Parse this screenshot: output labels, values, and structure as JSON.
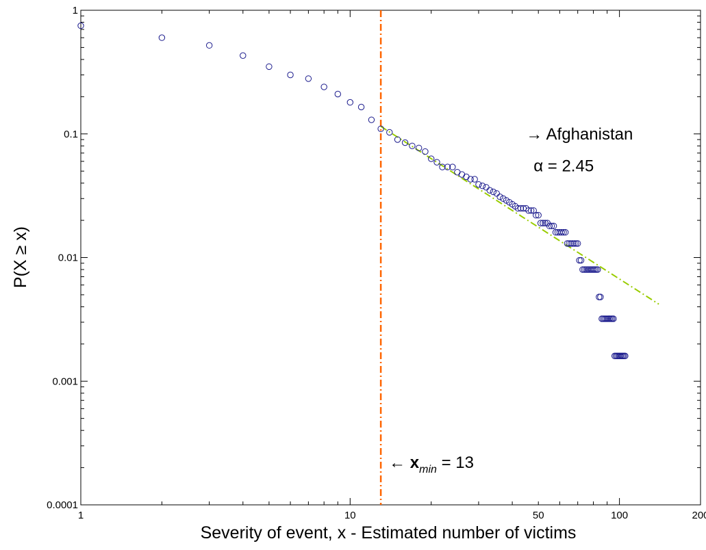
{
  "chart_data": {
    "type": "scatter",
    "title": "",
    "xlabel": "Severity of event, x - Estimated number of victims",
    "ylabel": "P(X ≥ x)",
    "x_scale": "log",
    "y_scale": "log",
    "xlim": [
      1,
      200
    ],
    "ylim": [
      0.0001,
      1
    ],
    "x_ticks": [
      1,
      10,
      50,
      100,
      200
    ],
    "x_tick_labels": [
      "1",
      "10",
      "50",
      "100",
      "200"
    ],
    "y_ticks": [
      0.0001,
      0.001,
      0.01,
      0.1,
      1
    ],
    "y_tick_labels": [
      "0.0001",
      "0.001",
      "0.01",
      "0.1",
      "1"
    ],
    "grid": false,
    "colors": {
      "points": "#1a1a8c",
      "fit": "#99cc00",
      "xmin_line": "#ff6600"
    },
    "series": [
      {
        "points": [
          [
            1,
            0.75
          ],
          [
            2,
            0.6
          ],
          [
            3,
            0.52
          ],
          [
            4,
            0.43
          ],
          [
            5,
            0.35
          ],
          [
            6,
            0.3
          ],
          [
            7,
            0.28
          ],
          [
            8,
            0.24
          ],
          [
            9,
            0.21
          ],
          [
            10,
            0.18
          ],
          [
            11,
            0.165
          ],
          [
            12,
            0.13
          ],
          [
            13,
            0.11
          ],
          [
            14,
            0.103
          ],
          [
            15,
            0.09
          ],
          [
            16,
            0.085
          ],
          [
            17,
            0.08
          ],
          [
            18,
            0.077
          ],
          [
            19,
            0.072
          ],
          [
            20,
            0.063
          ],
          [
            21,
            0.059
          ],
          [
            22,
            0.054
          ],
          [
            23,
            0.054
          ],
          [
            24,
            0.054
          ],
          [
            25,
            0.049
          ],
          [
            26,
            0.047
          ],
          [
            27,
            0.045
          ],
          [
            28,
            0.043
          ],
          [
            29,
            0.043
          ],
          [
            30,
            0.039
          ],
          [
            31,
            0.038
          ],
          [
            32,
            0.037
          ],
          [
            33,
            0.035
          ],
          [
            34,
            0.034
          ],
          [
            35,
            0.033
          ],
          [
            36,
            0.031
          ],
          [
            37,
            0.03
          ],
          [
            38,
            0.029
          ],
          [
            39,
            0.028
          ],
          [
            40,
            0.027
          ],
          [
            41,
            0.026
          ],
          [
            42,
            0.025
          ],
          [
            43,
            0.025
          ],
          [
            44,
            0.025
          ],
          [
            45,
            0.025
          ],
          [
            46,
            0.024
          ],
          [
            47,
            0.024
          ],
          [
            48,
            0.024
          ],
          [
            49,
            0.022
          ],
          [
            50,
            0.022
          ],
          [
            51,
            0.019
          ],
          [
            52,
            0.019
          ],
          [
            53,
            0.019
          ],
          [
            54,
            0.019
          ],
          [
            55,
            0.018
          ],
          [
            56,
            0.018
          ],
          [
            57,
            0.018
          ],
          [
            58,
            0.016
          ],
          [
            59,
            0.016
          ],
          [
            60,
            0.016
          ],
          [
            61,
            0.016
          ],
          [
            62,
            0.016
          ],
          [
            63,
            0.016
          ],
          [
            64,
            0.013
          ],
          [
            65,
            0.013
          ],
          [
            66,
            0.013
          ],
          [
            67,
            0.013
          ],
          [
            68,
            0.013
          ],
          [
            69,
            0.013
          ],
          [
            70,
            0.013
          ],
          [
            71,
            0.0095
          ],
          [
            72,
            0.0095
          ],
          [
            73,
            0.008
          ],
          [
            74,
            0.008
          ],
          [
            75,
            0.008
          ],
          [
            76,
            0.008
          ],
          [
            77,
            0.008
          ],
          [
            78,
            0.008
          ],
          [
            79,
            0.008
          ],
          [
            80,
            0.008
          ],
          [
            81,
            0.008
          ],
          [
            82,
            0.008
          ],
          [
            83,
            0.008
          ],
          [
            84,
            0.0048
          ],
          [
            85,
            0.0048
          ],
          [
            86,
            0.0032
          ],
          [
            87,
            0.0032
          ],
          [
            88,
            0.0032
          ],
          [
            89,
            0.0032
          ],
          [
            90,
            0.0032
          ],
          [
            91,
            0.0032
          ],
          [
            92,
            0.0032
          ],
          [
            93,
            0.0032
          ],
          [
            94,
            0.0032
          ],
          [
            95,
            0.0032
          ],
          [
            96,
            0.0016
          ],
          [
            97,
            0.0016
          ],
          [
            98,
            0.0016
          ],
          [
            99,
            0.0016
          ],
          [
            100,
            0.0016
          ],
          [
            101,
            0.0016
          ],
          [
            102,
            0.0016
          ],
          [
            103,
            0.0016
          ],
          [
            104,
            0.0016
          ],
          [
            105,
            0.0016
          ]
        ]
      }
    ],
    "fit_line": {
      "x": [
        13,
        140
      ],
      "y": [
        0.115,
        0.0042
      ],
      "style": "dash-dot"
    },
    "xmin_line": {
      "x": 13,
      "style": "dash-dot"
    },
    "annotations": [
      {
        "arrow": "→",
        "text": "Afghanistan",
        "x": 45,
        "y": 0.1
      },
      {
        "text": "α = 2.45",
        "x": 48,
        "y": 0.055
      },
      {
        "arrow": "←",
        "symbol": "x",
        "subscript": "min",
        "value_text": " = 13",
        "x": 13,
        "y": 0.00022
      }
    ]
  }
}
